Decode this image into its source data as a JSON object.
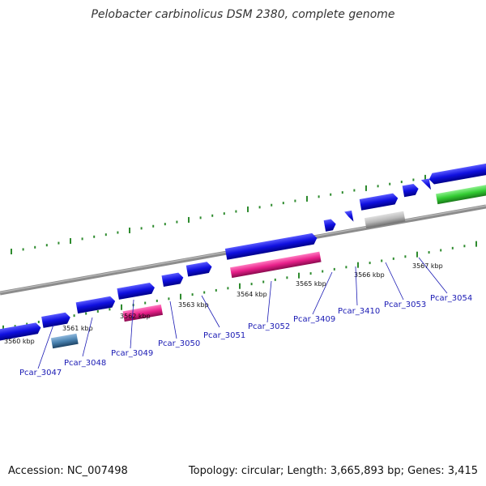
{
  "title": "Pelobacter carbinolicus DSM 2380, complete genome",
  "footer": {
    "accession": "Accession: NC_007498",
    "summary": "Topology: circular; Length: 3,665,893 bp; Genes: 3,415"
  },
  "colors": {
    "cds_blue": "#1010e0",
    "pink": "#e8208a",
    "grey": "#b8b8b8",
    "green": "#33cc33",
    "steel": "#4a82b0",
    "backbone": "#8c8c8c",
    "tick_green": "#2e8b2e",
    "label_blue": "#1a1ab4"
  },
  "kbp_labels": [
    "3560 kbp",
    "3561 kbp",
    "3562 kbp",
    "3563 kbp",
    "3564 kbp",
    "3565 kbp",
    "3566 kbp",
    "3567 kbp"
  ],
  "gene_labels": [
    "Pcar_3047",
    "Pcar_3048",
    "Pcar_3049",
    "Pcar_3050",
    "Pcar_3051",
    "Pcar_3052",
    "Pcar_3409",
    "Pcar_3410",
    "Pcar_3053",
    "Pcar_3054"
  ]
}
